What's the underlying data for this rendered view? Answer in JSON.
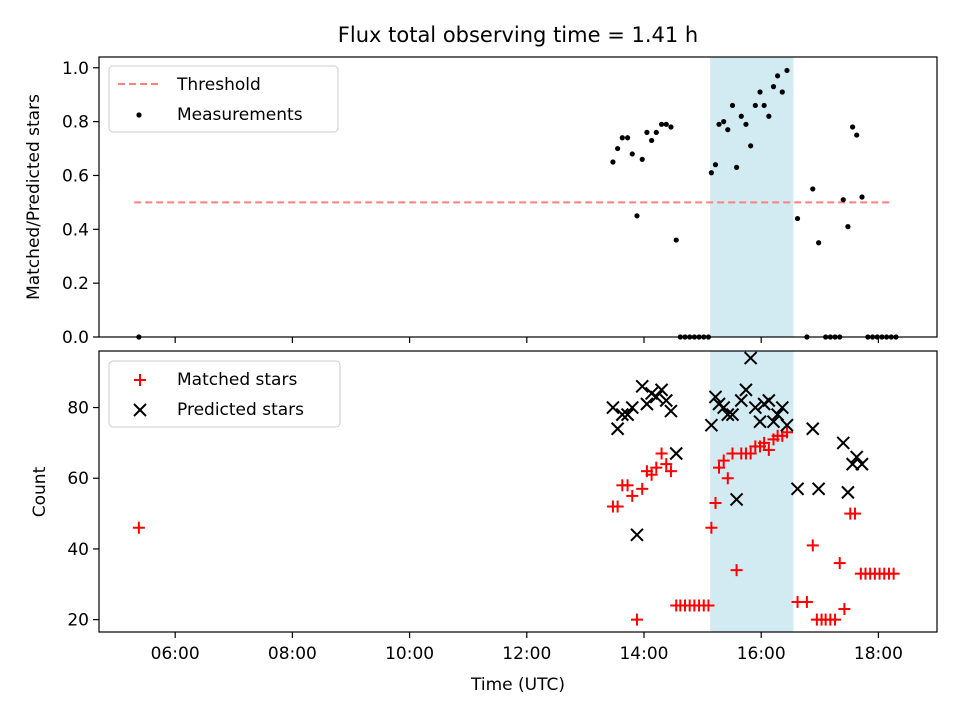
{
  "chart_data": {
    "title": "Flux total observing time = 1.41 h",
    "xlabel": "Time (UTC)",
    "xlim": [
      4.7,
      19.0
    ],
    "x_ticks": [
      6,
      8,
      10,
      12,
      14,
      16,
      18
    ],
    "x_tick_labels": [
      "06:00",
      "08:00",
      "10:00",
      "12:00",
      "14:00",
      "16:00",
      "18:00"
    ],
    "highlight_span": [
      15.13,
      16.55
    ],
    "colors": {
      "threshold": "#ff7f7f",
      "measurements": "#000000",
      "matched": "#ff0000",
      "predicted": "#000000",
      "highlight": "#add8e6"
    },
    "panels": [
      {
        "type": "scatter",
        "ylabel": "Matched/Predicted stars",
        "ylim": [
          0,
          1.04
        ],
        "y_ticks": [
          0.0,
          0.2,
          0.4,
          0.6,
          0.8,
          1.0
        ],
        "y_tick_labels": [
          "0.0",
          "0.2",
          "0.4",
          "0.6",
          "0.8",
          "1.0"
        ],
        "legend_position": "upper-left",
        "threshold": {
          "name": "Threshold",
          "y": 0.5,
          "x": [
            5.3,
            18.25
          ]
        },
        "series": [
          {
            "name": "Measurements",
            "marker": "dot",
            "points": [
              [
                5.38,
                0.0
              ],
              [
                13.47,
                0.65
              ],
              [
                13.55,
                0.7
              ],
              [
                13.63,
                0.74
              ],
              [
                13.72,
                0.74
              ],
              [
                13.8,
                0.68
              ],
              [
                13.88,
                0.45
              ],
              [
                13.97,
                0.66
              ],
              [
                14.05,
                0.76
              ],
              [
                14.13,
                0.73
              ],
              [
                14.21,
                0.76
              ],
              [
                14.3,
                0.79
              ],
              [
                14.38,
                0.79
              ],
              [
                14.46,
                0.78
              ],
              [
                14.55,
                0.36
              ],
              [
                14.62,
                0.0
              ],
              [
                14.7,
                0.0
              ],
              [
                14.78,
                0.0
              ],
              [
                14.86,
                0.0
              ],
              [
                14.94,
                0.0
              ],
              [
                15.02,
                0.0
              ],
              [
                15.1,
                0.0
              ],
              [
                15.15,
                0.61
              ],
              [
                15.22,
                0.64
              ],
              [
                15.28,
                0.79
              ],
              [
                15.36,
                0.8
              ],
              [
                15.43,
                0.77
              ],
              [
                15.51,
                0.86
              ],
              [
                15.58,
                0.63
              ],
              [
                15.66,
                0.82
              ],
              [
                15.74,
                0.79
              ],
              [
                15.82,
                0.71
              ],
              [
                15.9,
                0.86
              ],
              [
                15.98,
                0.91
              ],
              [
                16.05,
                0.86
              ],
              [
                16.13,
                0.82
              ],
              [
                16.21,
                0.93
              ],
              [
                16.28,
                0.97
              ],
              [
                16.36,
                0.91
              ],
              [
                16.44,
                0.99
              ],
              [
                16.62,
                0.44
              ],
              [
                16.78,
                0.0
              ],
              [
                16.88,
                0.55
              ],
              [
                16.98,
                0.35
              ],
              [
                17.1,
                0.0
              ],
              [
                17.18,
                0.0
              ],
              [
                17.26,
                0.0
              ],
              [
                17.34,
                0.0
              ],
              [
                17.4,
                0.51
              ],
              [
                17.48,
                0.41
              ],
              [
                17.56,
                0.78
              ],
              [
                17.63,
                0.75
              ],
              [
                17.72,
                0.52
              ],
              [
                17.82,
                0.0
              ],
              [
                17.9,
                0.0
              ],
              [
                17.98,
                0.0
              ],
              [
                18.06,
                0.0
              ],
              [
                18.14,
                0.0
              ],
              [
                18.22,
                0.0
              ],
              [
                18.3,
                0.0
              ]
            ]
          }
        ]
      },
      {
        "type": "scatter",
        "ylabel": "Count",
        "ylim": [
          16.5,
          96
        ],
        "y_ticks": [
          20,
          40,
          60,
          80
        ],
        "y_tick_labels": [
          "20",
          "40",
          "60",
          "80"
        ],
        "legend_position": "upper-left",
        "series": [
          {
            "name": "Matched stars",
            "marker": "plus",
            "points": [
              [
                5.38,
                46
              ],
              [
                13.47,
                52
              ],
              [
                13.55,
                52
              ],
              [
                13.63,
                58
              ],
              [
                13.72,
                58
              ],
              [
                13.8,
                55
              ],
              [
                13.88,
                20
              ],
              [
                13.97,
                57
              ],
              [
                14.05,
                62
              ],
              [
                14.13,
                61
              ],
              [
                14.21,
                63
              ],
              [
                14.3,
                67
              ],
              [
                14.38,
                64
              ],
              [
                14.46,
                62
              ],
              [
                14.55,
                24
              ],
              [
                14.62,
                24
              ],
              [
                14.7,
                24
              ],
              [
                14.78,
                24
              ],
              [
                14.86,
                24
              ],
              [
                14.94,
                24
              ],
              [
                15.02,
                24
              ],
              [
                15.1,
                24
              ],
              [
                15.15,
                46
              ],
              [
                15.22,
                53
              ],
              [
                15.28,
                63
              ],
              [
                15.36,
                65
              ],
              [
                15.43,
                60
              ],
              [
                15.51,
                67
              ],
              [
                15.58,
                34
              ],
              [
                15.66,
                67
              ],
              [
                15.74,
                67
              ],
              [
                15.82,
                67
              ],
              [
                15.9,
                69
              ],
              [
                15.98,
                69
              ],
              [
                16.05,
                70
              ],
              [
                16.13,
                68
              ],
              [
                16.21,
                71
              ],
              [
                16.28,
                72
              ],
              [
                16.36,
                72
              ],
              [
                16.44,
                73
              ],
              [
                16.62,
                25
              ],
              [
                16.78,
                25
              ],
              [
                16.88,
                41
              ],
              [
                16.95,
                20
              ],
              [
                17.03,
                20
              ],
              [
                17.1,
                20
              ],
              [
                17.18,
                20
              ],
              [
                17.26,
                20
              ],
              [
                17.34,
                36
              ],
              [
                17.42,
                23
              ],
              [
                17.52,
                50
              ],
              [
                17.6,
                50
              ],
              [
                17.7,
                33
              ],
              [
                17.78,
                33
              ],
              [
                17.86,
                33
              ],
              [
                17.94,
                33
              ],
              [
                18.02,
                33
              ],
              [
                18.1,
                33
              ],
              [
                18.18,
                33
              ],
              [
                18.26,
                33
              ]
            ]
          },
          {
            "name": "Predicted stars",
            "marker": "x",
            "points": [
              [
                13.47,
                80
              ],
              [
                13.55,
                74
              ],
              [
                13.63,
                78
              ],
              [
                13.72,
                78
              ],
              [
                13.8,
                80
              ],
              [
                13.88,
                44
              ],
              [
                13.97,
                86
              ],
              [
                14.05,
                81
              ],
              [
                14.13,
                84
              ],
              [
                14.21,
                83
              ],
              [
                14.3,
                85
              ],
              [
                14.38,
                82
              ],
              [
                14.46,
                79
              ],
              [
                14.55,
                67
              ],
              [
                15.15,
                75
              ],
              [
                15.22,
                83
              ],
              [
                15.28,
                81
              ],
              [
                15.36,
                80
              ],
              [
                15.43,
                78
              ],
              [
                15.51,
                78
              ],
              [
                15.58,
                54
              ],
              [
                15.66,
                82
              ],
              [
                15.74,
                85
              ],
              [
                15.82,
                94
              ],
              [
                15.9,
                80
              ],
              [
                15.98,
                76
              ],
              [
                16.05,
                81
              ],
              [
                16.13,
                82
              ],
              [
                16.21,
                76
              ],
              [
                16.28,
                78
              ],
              [
                16.36,
                80
              ],
              [
                16.44,
                75
              ],
              [
                16.62,
                57
              ],
              [
                16.88,
                74
              ],
              [
                16.98,
                57
              ],
              [
                17.4,
                70
              ],
              [
                17.48,
                56
              ],
              [
                17.56,
                64
              ],
              [
                17.63,
                66
              ],
              [
                17.72,
                64
              ]
            ]
          }
        ]
      }
    ]
  }
}
